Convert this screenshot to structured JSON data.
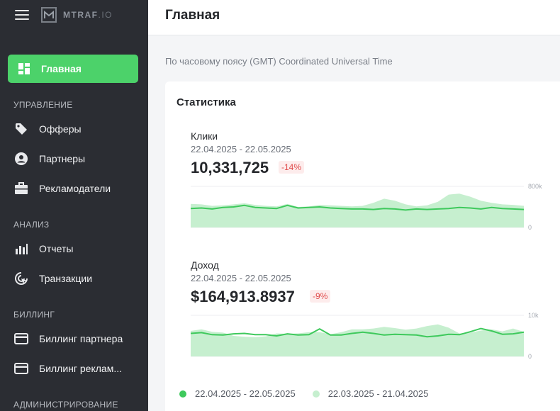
{
  "app": {
    "logo_text": "MTRAF",
    "logo_suffix": ".IO"
  },
  "sidebar": {
    "home": "Главная",
    "sections": [
      {
        "title": "УПРАВЛЕНИЕ",
        "items": [
          "Офферы",
          "Партнеры",
          "Рекламодатели"
        ]
      },
      {
        "title": "АНАЛИЗ",
        "items": [
          "Отчеты",
          "Транзакции"
        ]
      },
      {
        "title": "БИЛЛИНГ",
        "items": [
          "Биллинг партнера",
          "Биллинг реклам..."
        ]
      },
      {
        "title": "АДМИНИСТРИРОВАНИЕ",
        "items": []
      }
    ]
  },
  "header": {
    "title": "Главная"
  },
  "timezone_note": "По часовому поясу (GMT) Coordinated Universal Time",
  "stats": {
    "title": "Статистика",
    "metrics": [
      {
        "name": "Клики",
        "range": "22.04.2025 - 22.05.2025",
        "value": "10,331,725",
        "change": "-14%"
      },
      {
        "name": "Доход",
        "range": "22.04.2025 - 22.05.2025",
        "value": "$164,913.8937",
        "change": "-9%"
      }
    ],
    "legend": [
      {
        "label": "22.04.2025 - 22.05.2025",
        "color": "#3ec95c"
      },
      {
        "label": "22.03.2025 - 21.04.2025",
        "color": "#c6efcf"
      }
    ]
  },
  "chart_data": [
    {
      "type": "area",
      "ylim": [
        0,
        800000
      ],
      "y_ticks": [
        "800k",
        "0"
      ],
      "series": [
        {
          "values": [
            460000,
            450000,
            420000,
            430000,
            450000,
            470000,
            440000,
            420000,
            410000,
            460000,
            400000,
            410000,
            440000,
            430000,
            420000,
            410000,
            420000,
            480000,
            560000,
            520000,
            450000,
            410000,
            430000,
            500000,
            640000,
            660000,
            600000,
            520000,
            480000,
            450000,
            440000,
            420000
          ]
        },
        {
          "values": [
            370000,
            380000,
            360000,
            390000,
            400000,
            430000,
            390000,
            380000,
            370000,
            430000,
            380000,
            390000,
            400000,
            380000,
            370000,
            360000,
            360000,
            350000,
            370000,
            360000,
            340000,
            360000,
            350000,
            360000,
            370000,
            390000,
            380000,
            360000,
            390000,
            370000,
            360000,
            350000
          ]
        }
      ]
    },
    {
      "type": "area",
      "ylim": [
        0,
        10000
      ],
      "y_ticks": [
        "10k",
        "0"
      ],
      "series": [
        {
          "values": [
            6200,
            6600,
            6000,
            5800,
            5000,
            4800,
            4700,
            4900,
            5600,
            5500,
            5600,
            5900,
            5900,
            5400,
            5900,
            6600,
            6600,
            6800,
            7200,
            6900,
            6500,
            6800,
            7400,
            7800,
            7000,
            5600,
            5800,
            6300,
            6600,
            6100,
            6800,
            6000
          ]
        },
        {
          "values": [
            5600,
            5800,
            5300,
            5200,
            5500,
            5600,
            5300,
            5300,
            5000,
            5500,
            5200,
            5300,
            6700,
            5200,
            5200,
            5600,
            5900,
            5600,
            5200,
            5400,
            5300,
            5200,
            4800,
            5000,
            5400,
            5300,
            6000,
            6800,
            6200,
            5400,
            5500,
            5900
          ]
        }
      ]
    }
  ]
}
